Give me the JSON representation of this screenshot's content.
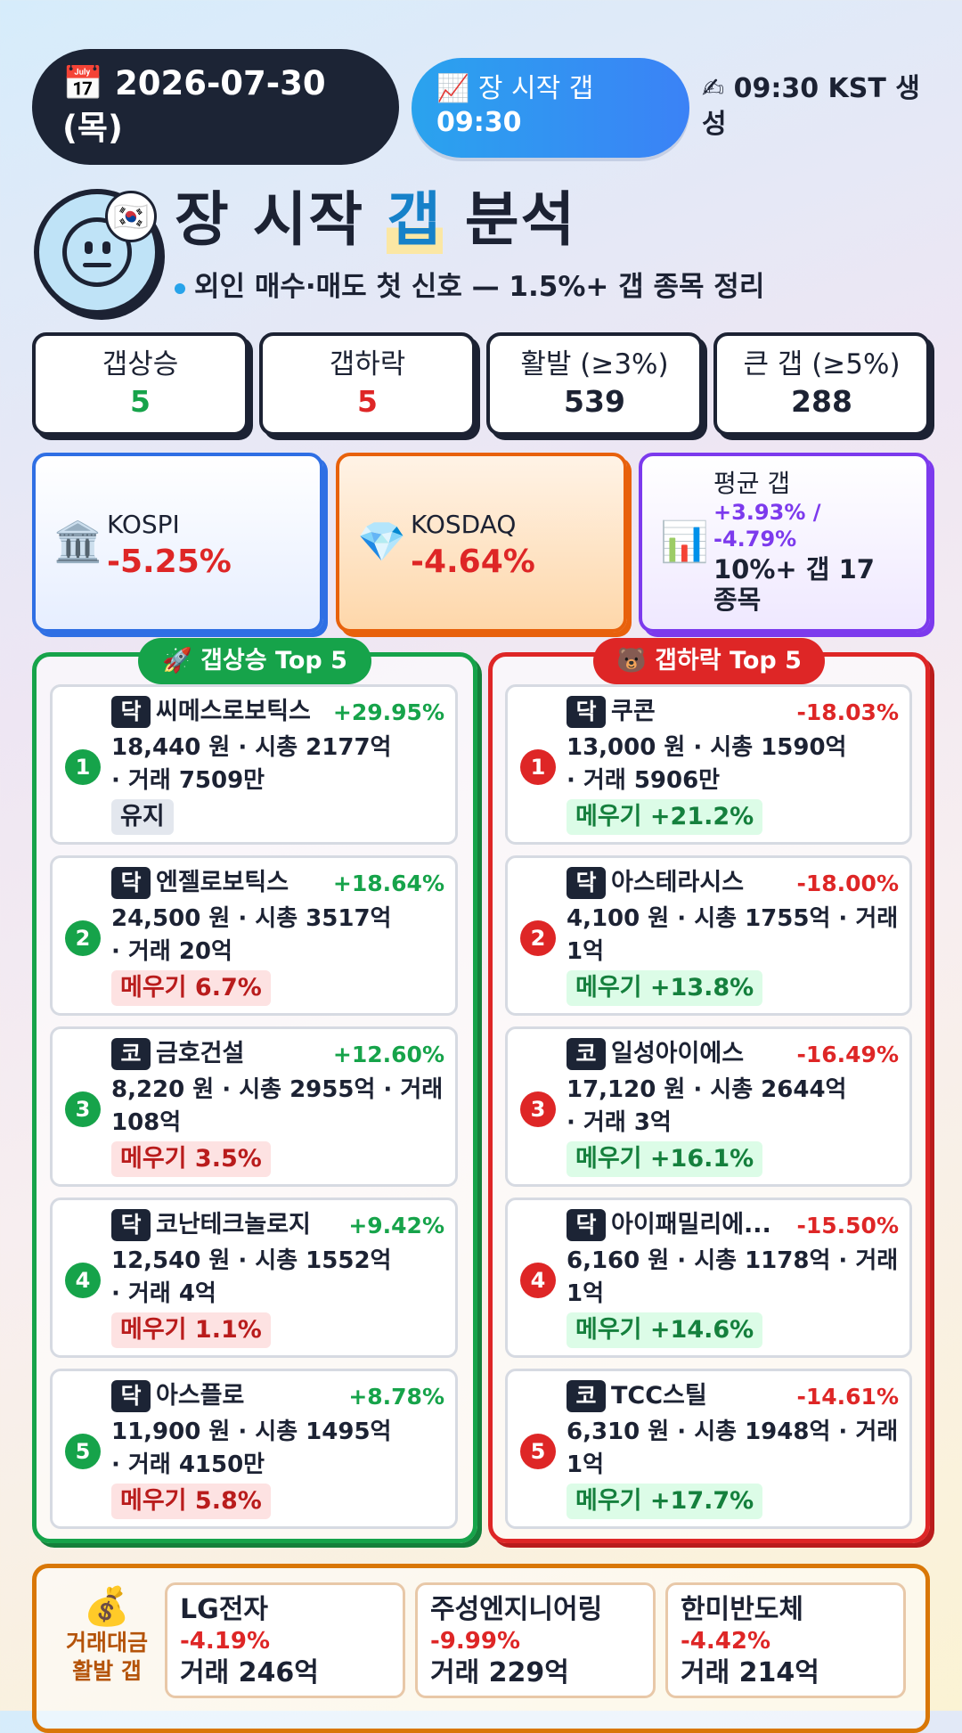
{
  "header": {
    "date_icon": "📅",
    "date": "2026-07-30",
    "weekday": "(목)",
    "open_icon": "📈",
    "open_label": "장 시작 갭",
    "open_time": "09:30",
    "gen_icon": "✍",
    "gen_text": "09:30 KST 생성"
  },
  "title": {
    "flag": "🇰🇷",
    "prefix": "장 시작 ",
    "highlight": "갭",
    "suffix": " 분석",
    "subtitle": "외인 매수·매도 첫 신호 — 1.5%+ 갭 종목 정리"
  },
  "stats": [
    {
      "label": "갭상승",
      "value": "5",
      "color": "#16a34a"
    },
    {
      "label": "갭하락",
      "value": "5",
      "color": "#de2626"
    },
    {
      "label": "활발 (≥3%)",
      "value": "539",
      "color": "#1c2233"
    },
    {
      "label": "큰 갭 (≥5%)",
      "value": "288",
      "color": "#1c2233"
    }
  ],
  "indices": {
    "kospi": {
      "icon": "🏛️",
      "name": "KOSPI",
      "value": "-5.25%"
    },
    "kosdaq": {
      "icon": "💎",
      "name": "KOSDAQ",
      "value": "-4.64%"
    },
    "avg": {
      "icon": "📊",
      "name": "평균 갭",
      "value_line1": "+3.93% /",
      "value_line2": "-4.79%",
      "extra_line1": "10%+ 갭 17",
      "extra_line2": "종목"
    }
  },
  "up_panel": {
    "title_icon": "🚀",
    "title": "갭상승 Top 5",
    "items": [
      {
        "rank": "1",
        "market": "닥",
        "name": "씨메스로보틱스",
        "pct": "+29.95%",
        "line1": "18,440 원 · 시총 2177억",
        "line2": "· 거래 7509만",
        "tag": "유지"
      },
      {
        "rank": "2",
        "market": "닥",
        "name": "엔젤로보틱스",
        "pct": "+18.64%",
        "line1": "24,500 원 · 시총 3517억",
        "line2": "· 거래 20억",
        "tag": "메우기 6.7%"
      },
      {
        "rank": "3",
        "market": "코",
        "name": "금호건설",
        "pct": "+12.60%",
        "line1": "8,220 원 · 시총 2955억 · 거래",
        "line2": "108억",
        "tag": "메우기 3.5%"
      },
      {
        "rank": "4",
        "market": "닥",
        "name": "코난테크놀로지",
        "pct": "+9.42%",
        "line1": "12,540 원 · 시총 1552억",
        "line2": "· 거래 4억",
        "tag": "메우기 1.1%"
      },
      {
        "rank": "5",
        "market": "닥",
        "name": "아스플로",
        "pct": "+8.78%",
        "line1": "11,900 원 · 시총 1495억",
        "line2": "· 거래 4150만",
        "tag": "메우기 5.8%"
      }
    ]
  },
  "down_panel": {
    "title_icon": "🐻",
    "title": "갭하락 Top 5",
    "items": [
      {
        "rank": "1",
        "market": "닥",
        "name": "쿠콘",
        "pct": "-18.03%",
        "line1": "13,000 원 · 시총 1590억",
        "line2": "· 거래 5906만",
        "tag": "메우기 +21.2%"
      },
      {
        "rank": "2",
        "market": "닥",
        "name": "아스테라시스",
        "pct": "-18.00%",
        "line1": "4,100 원 · 시총 1755억 · 거래",
        "line2": "1억",
        "tag": "메우기 +13.8%"
      },
      {
        "rank": "3",
        "market": "코",
        "name": "일성아이에스",
        "pct": "-16.49%",
        "line1": "17,120 원 · 시총 2644억",
        "line2": "· 거래 3억",
        "tag": "메우기 +16.1%"
      },
      {
        "rank": "4",
        "market": "닥",
        "name": "아이패밀리에...",
        "pct": "-15.50%",
        "line1": "6,160 원 · 시총 1178억 · 거래",
        "line2": "1억",
        "tag": "메우기 +14.6%"
      },
      {
        "rank": "5",
        "market": "코",
        "name": "TCC스틸",
        "pct": "-14.61%",
        "line1": "6,310 원 · 시총 1948억 · 거래",
        "line2": "1억",
        "tag": "메우기 +17.7%"
      }
    ]
  },
  "bottom": {
    "icon": "💰",
    "label_line1": "거래대금",
    "label_line2": "활발 갭",
    "items": [
      {
        "name": "LG전자",
        "pct": "-4.19%",
        "volume": "거래 246억"
      },
      {
        "name": "주성엔지니어링",
        "pct": "-9.99%",
        "volume": "거래 229억"
      },
      {
        "name": "한미반도체",
        "pct": "-4.42%",
        "volume": "거래 214억"
      }
    ]
  }
}
